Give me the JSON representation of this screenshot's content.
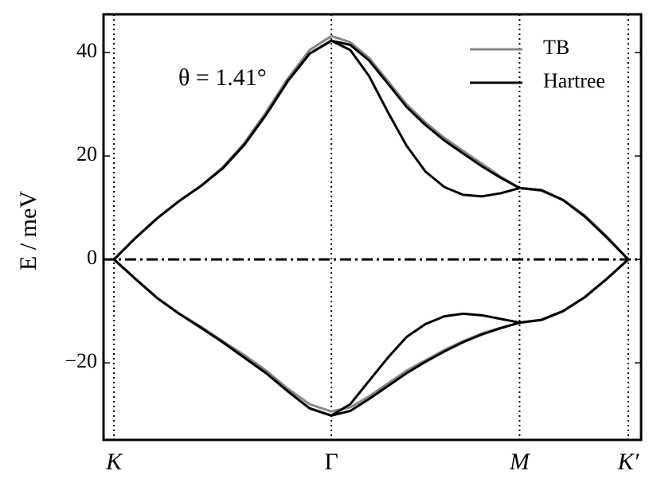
{
  "chart_data": {
    "type": "line",
    "annotation": "θ = 1.41°",
    "y_label": "E / meV",
    "x": [
      0,
      0.1,
      0.2,
      0.3,
      0.4,
      0.5,
      0.6,
      0.7,
      0.8,
      0.9,
      1.0,
      1.087,
      1.173,
      1.26,
      1.346,
      1.433,
      1.52,
      1.606,
      1.693,
      1.779,
      1.866,
      1.966,
      2.066,
      2.166,
      2.266,
      2.366
    ],
    "series": [
      {
        "name": "TB",
        "color": "#888888",
        "bands": [
          [
            0,
            4.2,
            8.0,
            11.3,
            14.2,
            17.8,
            22.5,
            28.5,
            35,
            40.5,
            43.2,
            42,
            39,
            34.5,
            30,
            26.5,
            23.5,
            21,
            18.5,
            16,
            13.8,
            13.3,
            11.5,
            8.5,
            4.5,
            0
          ],
          [
            0,
            -3.8,
            -7.5,
            -10.5,
            -13,
            -15.8,
            -18.5,
            -21.5,
            -25,
            -28,
            -29.4,
            -28.6,
            -26.5,
            -24,
            -21.5,
            -19.5,
            -17.5,
            -15.8,
            -14.3,
            -13.2,
            -12.3,
            -11.7,
            -10,
            -7.3,
            -3.8,
            0
          ]
        ]
      },
      {
        "name": "Hartree",
        "color": "#000000",
        "bands": [
          [
            0,
            4.2,
            8.0,
            11.3,
            14.2,
            17.6,
            22.2,
            28,
            34.5,
            39.8,
            42.3,
            41.5,
            38.5,
            34,
            29.5,
            26,
            23,
            20.5,
            18,
            15.8,
            13.8,
            13.4,
            11.5,
            8.3,
            4.3,
            0
          ],
          [
            0,
            4.2,
            8.0,
            11.3,
            14.2,
            17.6,
            22.2,
            28,
            34.5,
            39.8,
            42.3,
            40.5,
            35.5,
            28.5,
            22,
            17,
            14,
            12.5,
            12.2,
            12.8,
            13.8,
            13.4,
            11.5,
            8.3,
            4.3,
            0
          ],
          [
            0,
            -3.8,
            -7.5,
            -10.5,
            -13.2,
            -16,
            -19,
            -22,
            -25.5,
            -28.8,
            -30.2,
            -29.3,
            -27,
            -24.5,
            -22,
            -19.8,
            -17.8,
            -16,
            -14.5,
            -13.3,
            -12.2,
            -11.7,
            -10,
            -7.3,
            -3.8,
            0
          ],
          [
            0,
            -3.8,
            -7.5,
            -10.5,
            -13.2,
            -16,
            -19,
            -22,
            -25.5,
            -28.8,
            -30.2,
            -28,
            -23.5,
            -19,
            -15,
            -12.5,
            -11,
            -10.5,
            -10.8,
            -11.5,
            -12.2,
            -11.7,
            -10,
            -7.3,
            -3.8,
            0
          ]
        ]
      }
    ],
    "xlim": [
      -0.048,
      2.425
    ],
    "ylim": [
      -34.9,
      47.4
    ],
    "xticks": [
      {
        "value": 0,
        "label": "K"
      },
      {
        "value": 1,
        "label": "Γ"
      },
      {
        "value": 1.866,
        "label": "M"
      },
      {
        "value": 2.366,
        "label": "K′"
      }
    ],
    "yticks": [
      {
        "value": -20,
        "label": "−20"
      },
      0,
      20,
      40
    ],
    "hline": 0,
    "grid": true,
    "legend": "upper right"
  }
}
